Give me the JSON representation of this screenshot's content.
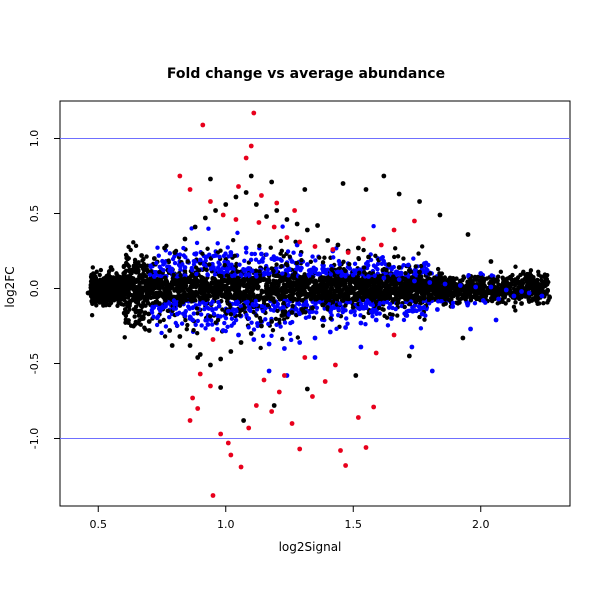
{
  "chart_data": {
    "type": "scatter",
    "title": "Fold change vs average abundance",
    "xlabel": "log2Signal",
    "ylabel": "log2FC",
    "xlim": [
      0.35,
      2.35
    ],
    "ylim": [
      -1.45,
      1.25
    ],
    "x_ticks": [
      {
        "value": 0.5,
        "label": "0.5"
      },
      {
        "value": 1.0,
        "label": "1.0"
      },
      {
        "value": 1.5,
        "label": "1.5"
      },
      {
        "value": 2.0,
        "label": "2.0"
      }
    ],
    "y_ticks": [
      {
        "value": -1.0,
        "label": "-1.0"
      },
      {
        "value": -0.5,
        "label": "-0.5"
      },
      {
        "value": 0.0,
        "label": "0.0"
      },
      {
        "value": 0.5,
        "label": "0.5"
      },
      {
        "value": 1.0,
        "label": "1.0"
      }
    ],
    "reference_lines": [
      {
        "axis": "y",
        "value": 1.0,
        "color": "#6f6fff"
      },
      {
        "axis": "y",
        "value": -1.0,
        "color": "#6f6fff"
      }
    ],
    "grid": false,
    "legend": "none",
    "series": [
      {
        "color": "#000000",
        "description_points": "bulk points, dense band near zero",
        "points": [
          [
            0.46,
            -0.03
          ],
          [
            0.48,
            0.01
          ],
          [
            0.5,
            -0.05
          ],
          [
            0.52,
            0.04
          ],
          [
            0.54,
            -0.08
          ],
          [
            0.56,
            0.06
          ],
          [
            0.58,
            -0.02
          ],
          [
            0.6,
            0.1
          ],
          [
            0.62,
            -0.12
          ],
          [
            0.64,
            0.15
          ],
          [
            0.66,
            -0.18
          ],
          [
            0.68,
            0.09
          ],
          [
            0.7,
            -0.22
          ],
          [
            0.72,
            0.2
          ],
          [
            0.74,
            -0.1
          ],
          [
            0.76,
            0.27
          ],
          [
            0.78,
            -0.28
          ],
          [
            0.8,
            0.24
          ],
          [
            0.82,
            -0.32
          ],
          [
            0.84,
            0.33
          ],
          [
            0.86,
            -0.38
          ],
          [
            0.88,
            0.41
          ],
          [
            0.9,
            -0.44
          ],
          [
            0.92,
            0.47
          ],
          [
            0.94,
            -0.51
          ],
          [
            0.96,
            0.52
          ],
          [
            0.98,
            -0.47
          ],
          [
            1.0,
            0.56
          ],
          [
            1.02,
            -0.42
          ],
          [
            1.04,
            0.61
          ],
          [
            1.06,
            -0.36
          ],
          [
            1.08,
            0.64
          ],
          [
            1.1,
            -0.3
          ],
          [
            1.12,
            0.56
          ],
          [
            1.14,
            -0.25
          ],
          [
            1.16,
            0.48
          ],
          [
            1.18,
            -0.22
          ],
          [
            1.2,
            0.52
          ],
          [
            1.22,
            -0.18
          ],
          [
            1.24,
            0.46
          ],
          [
            1.26,
            -0.16
          ],
          [
            1.28,
            0.43
          ],
          [
            1.3,
            -0.14
          ],
          [
            1.32,
            0.39
          ],
          [
            1.34,
            -0.13
          ],
          [
            1.36,
            0.42
          ],
          [
            1.38,
            -0.11
          ],
          [
            1.4,
            0.32
          ],
          [
            1.42,
            -0.09
          ],
          [
            1.44,
            0.29
          ],
          [
            1.46,
            -0.08
          ],
          [
            1.48,
            0.25
          ],
          [
            1.5,
            -0.07
          ],
          [
            1.52,
            0.27
          ],
          [
            1.54,
            -0.06
          ],
          [
            1.56,
            0.21
          ],
          [
            1.58,
            -0.05
          ],
          [
            1.6,
            0.19
          ],
          [
            1.62,
            -0.04
          ],
          [
            1.64,
            0.16
          ],
          [
            1.66,
            -0.03
          ],
          [
            1.68,
            0.14
          ],
          [
            1.7,
            -0.02
          ],
          [
            1.72,
            0.12
          ],
          [
            1.74,
            -0.01
          ],
          [
            1.76,
            0.11
          ],
          [
            1.78,
            0.02
          ],
          [
            1.8,
            0.1
          ],
          [
            1.82,
            -0.03
          ],
          [
            1.84,
            0.08
          ],
          [
            1.86,
            -0.05
          ],
          [
            1.88,
            0.07
          ],
          [
            1.9,
            -0.04
          ],
          [
            1.92,
            0.05
          ],
          [
            1.94,
            -0.07
          ],
          [
            1.96,
            0.04
          ],
          [
            1.98,
            -0.06
          ],
          [
            2.0,
            0.03
          ],
          [
            2.02,
            -0.05
          ],
          [
            2.04,
            0.02
          ],
          [
            2.06,
            -0.03
          ],
          [
            2.08,
            0.02
          ],
          [
            2.1,
            -0.02
          ],
          [
            2.12,
            0.03
          ],
          [
            2.14,
            -0.01
          ],
          [
            2.16,
            0.02
          ],
          [
            2.18,
            -0.02
          ],
          [
            2.2,
            0.01
          ],
          [
            2.22,
            -0.04
          ],
          [
            2.24,
            0.03
          ],
          [
            2.27,
            -0.06
          ],
          [
            1.1,
            0.75
          ],
          [
            1.62,
            0.75
          ],
          [
            1.18,
            0.71
          ],
          [
            1.46,
            0.7
          ],
          [
            0.94,
            0.73
          ],
          [
            1.31,
            0.66
          ],
          [
            1.55,
            0.66
          ],
          [
            1.68,
            0.63
          ],
          [
            1.76,
            0.58
          ],
          [
            1.84,
            0.49
          ],
          [
            1.95,
            0.36
          ],
          [
            2.04,
            0.18
          ],
          [
            2.16,
            -0.1
          ],
          [
            2.2,
            -0.08
          ],
          [
            1.93,
            -0.33
          ],
          [
            1.72,
            -0.45
          ],
          [
            1.51,
            -0.58
          ],
          [
            1.32,
            -0.67
          ],
          [
            1.19,
            -0.78
          ],
          [
            1.07,
            -0.88
          ],
          [
            0.98,
            -0.66
          ],
          [
            0.89,
            -0.46
          ],
          [
            0.79,
            -0.38
          ],
          [
            0.7,
            -0.28
          ],
          [
            0.61,
            -0.16
          ],
          [
            0.53,
            -0.11
          ],
          [
            0.49,
            0.07
          ],
          [
            0.55,
            0.14
          ],
          [
            0.67,
            0.22
          ]
        ]
      },
      {
        "color": "#0000ff",
        "description_points": "moderate fold change points",
        "points": [
          [
            0.72,
            0.08
          ],
          [
            0.75,
            -0.13
          ],
          [
            0.78,
            0.12
          ],
          [
            0.81,
            -0.17
          ],
          [
            0.84,
            0.14
          ],
          [
            0.87,
            -0.21
          ],
          [
            0.9,
            0.19
          ],
          [
            0.93,
            -0.24
          ],
          [
            0.96,
            0.22
          ],
          [
            0.99,
            -0.28
          ],
          [
            1.02,
            0.24
          ],
          [
            1.05,
            -0.31
          ],
          [
            1.08,
            0.27
          ],
          [
            1.11,
            -0.34
          ],
          [
            1.14,
            0.23
          ],
          [
            1.17,
            -0.37
          ],
          [
            1.2,
            0.2
          ],
          [
            1.23,
            -0.4
          ],
          [
            1.26,
            0.18
          ],
          [
            1.29,
            -0.36
          ],
          [
            1.32,
            0.16
          ],
          [
            1.35,
            -0.33
          ],
          [
            1.38,
            0.13
          ],
          [
            1.41,
            -0.29
          ],
          [
            1.44,
            0.11
          ],
          [
            1.47,
            -0.26
          ],
          [
            1.5,
            0.09
          ],
          [
            1.53,
            -0.23
          ],
          [
            1.56,
            0.08
          ],
          [
            1.59,
            -0.21
          ],
          [
            1.62,
            0.07
          ],
          [
            1.65,
            -0.2
          ],
          [
            1.68,
            0.06
          ],
          [
            1.71,
            -0.18
          ],
          [
            1.74,
            0.05
          ],
          [
            1.77,
            -0.17
          ],
          [
            1.8,
            0.04
          ],
          [
            1.83,
            -0.14
          ],
          [
            1.86,
            0.03
          ],
          [
            1.89,
            -0.12
          ],
          [
            1.92,
            0.02
          ],
          [
            1.95,
            -0.1
          ],
          [
            1.98,
            0.01
          ],
          [
            2.01,
            -0.08
          ],
          [
            2.04,
            0.01
          ],
          [
            2.07,
            -0.07
          ],
          [
            2.1,
            -0.01
          ],
          [
            2.13,
            -0.05
          ],
          [
            2.16,
            -0.02
          ],
          [
            2.19,
            -0.03
          ],
          [
            2.24,
            -0.05
          ],
          [
            1.17,
            -0.55
          ],
          [
            1.24,
            -0.58
          ],
          [
            1.35,
            -0.46
          ],
          [
            1.53,
            -0.39
          ],
          [
            1.73,
            -0.39
          ],
          [
            1.81,
            -0.55
          ],
          [
            1.96,
            -0.27
          ],
          [
            2.06,
            -0.21
          ],
          [
            1.28,
            0.29
          ],
          [
            1.42,
            0.25
          ],
          [
            1.61,
            0.2
          ],
          [
            1.79,
            0.12
          ],
          [
            2.0,
            0.1
          ]
        ]
      },
      {
        "color": "#e8001c",
        "description_points": "highlighted strong fold change points",
        "points": [
          [
            0.91,
            1.09
          ],
          [
            1.11,
            1.17
          ],
          [
            1.08,
            0.87
          ],
          [
            1.1,
            0.95
          ],
          [
            0.82,
            0.75
          ],
          [
            0.86,
            0.66
          ],
          [
            0.94,
            0.58
          ],
          [
            0.99,
            0.49
          ],
          [
            1.04,
            0.46
          ],
          [
            1.13,
            0.44
          ],
          [
            1.19,
            0.41
          ],
          [
            1.24,
            0.34
          ],
          [
            1.29,
            0.31
          ],
          [
            1.35,
            0.28
          ],
          [
            1.42,
            0.26
          ],
          [
            1.48,
            0.24
          ],
          [
            1.54,
            0.33
          ],
          [
            1.61,
            0.29
          ],
          [
            1.66,
            0.39
          ],
          [
            1.74,
            0.45
          ],
          [
            1.27,
            0.52
          ],
          [
            1.2,
            0.57
          ],
          [
            1.14,
            0.62
          ],
          [
            1.05,
            0.68
          ],
          [
            0.95,
            -0.34
          ],
          [
            0.9,
            -0.57
          ],
          [
            0.87,
            -0.73
          ],
          [
            0.86,
            -0.88
          ],
          [
            0.89,
            -0.8
          ],
          [
            0.94,
            -0.65
          ],
          [
            0.98,
            -0.97
          ],
          [
            1.01,
            -1.03
          ],
          [
            1.02,
            -1.11
          ],
          [
            1.06,
            -1.19
          ],
          [
            1.09,
            -0.93
          ],
          [
            1.12,
            -0.78
          ],
          [
            1.18,
            -0.82
          ],
          [
            1.21,
            -0.69
          ],
          [
            1.26,
            -0.9
          ],
          [
            1.29,
            -1.07
          ],
          [
            1.34,
            -0.72
          ],
          [
            1.39,
            -0.62
          ],
          [
            1.45,
            -1.08
          ],
          [
            1.47,
            -1.18
          ],
          [
            1.52,
            -0.86
          ],
          [
            1.55,
            -1.06
          ],
          [
            1.58,
            -0.79
          ],
          [
            0.95,
            -1.38
          ],
          [
            1.15,
            -0.61
          ],
          [
            1.23,
            -0.58
          ],
          [
            1.31,
            -0.46
          ],
          [
            1.43,
            -0.51
          ],
          [
            1.59,
            -0.43
          ],
          [
            1.66,
            -0.31
          ]
        ]
      }
    ]
  }
}
